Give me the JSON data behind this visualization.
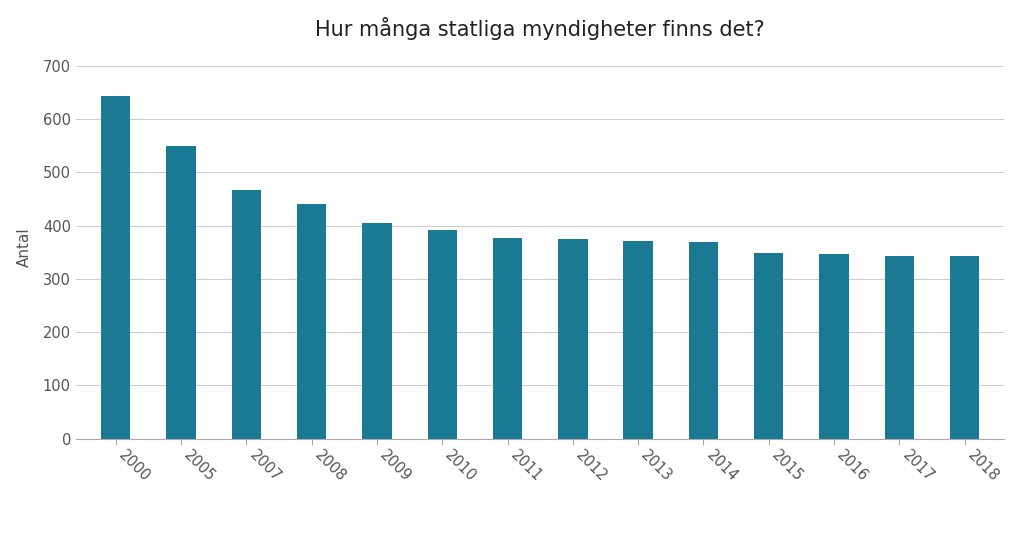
{
  "categories": [
    "2000",
    "2005",
    "2007",
    "2008",
    "2009",
    "2010",
    "2011",
    "2012",
    "2013",
    "2014",
    "2015",
    "2016",
    "2017",
    "2018"
  ],
  "values": [
    643,
    550,
    467,
    440,
    404,
    392,
    376,
    375,
    372,
    369,
    349,
    346,
    343,
    343
  ],
  "bar_color": "#1a7a94",
  "title": "Hur många statliga myndigheter finns det?",
  "ylabel": "Antal",
  "ylim": [
    0,
    720
  ],
  "yticks": [
    0,
    100,
    200,
    300,
    400,
    500,
    600,
    700
  ],
  "background_color": "#ffffff",
  "grid_color": "#cccccc",
  "title_fontsize": 15,
  "axis_label_fontsize": 11,
  "tick_fontsize": 10.5
}
